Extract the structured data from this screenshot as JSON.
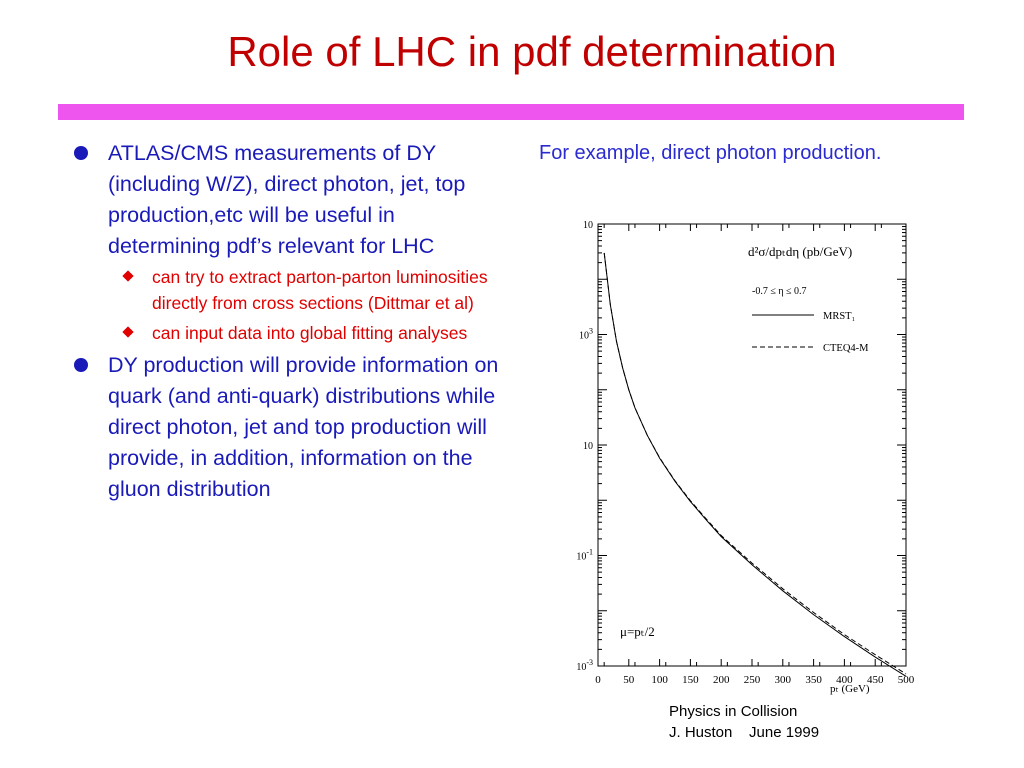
{
  "slide": {
    "title": "Role of LHC in pdf determination",
    "title_color": "#c00000",
    "rule_color": "#ee55ee",
    "side_caption": "For example, direct photon production.",
    "footer_line1": "Physics in Collision",
    "footer_line2": "J. Huston    June 1999",
    "bullets": [
      {
        "text": "ATLAS/CMS measurements of DY (including W/Z), direct photon, jet, top production,etc will be useful in determining pdf’s relevant for LHC",
        "sub": [
          "can try to extract parton-parton luminosities directly from cross sections (Dittmar et al)",
          "can input data into global fitting analyses"
        ]
      },
      {
        "text": "DY production will provide information on quark (and anti-quark) distributions while direct photon, jet and top production will provide, in addition, information on the gluon distribution",
        "sub": []
      }
    ]
  },
  "chart_data": {
    "type": "line",
    "title": "d²σ/dpₜdη  (pb/GeV)",
    "annotation_eta": "-0.7 ≤ η  ≤ 0.7",
    "annotation_scale": "μ=pₜ/2",
    "xlabel": "pₜ (GeV)",
    "ylabel": "",
    "xlim": [
      0,
      500
    ],
    "ylim_log10": [
      -3,
      5
    ],
    "y_scale": "log",
    "x_ticks": [
      0,
      50,
      100,
      150,
      200,
      250,
      300,
      350,
      400,
      450,
      500
    ],
    "y_tick_labels": [
      {
        "exp": 5,
        "label": "10",
        "sup": ""
      },
      {
        "exp": 3,
        "label": "10",
        "sup": "3"
      },
      {
        "exp": 1,
        "label": "10",
        "sup": ""
      },
      {
        "exp": -1,
        "label": "10",
        "sup": "-1"
      },
      {
        "exp": -3,
        "label": "10",
        "sup": "-3"
      }
    ],
    "legend_position": "top-right",
    "series": [
      {
        "name": "MRST₁",
        "style": "solid",
        "x": [
          10,
          20,
          30,
          40,
          50,
          60,
          80,
          100,
          125,
          150,
          175,
          200,
          250,
          300,
          350,
          400,
          450,
          500
        ],
        "y": [
          30000,
          3500,
          750,
          250,
          100,
          47,
          15,
          5.8,
          2.2,
          0.95,
          0.45,
          0.22,
          0.068,
          0.023,
          0.0085,
          0.0034,
          0.00145,
          0.00065
        ]
      },
      {
        "name": "CTEQ4-M",
        "style": "dashed",
        "x": [
          10,
          20,
          30,
          40,
          50,
          60,
          80,
          100,
          125,
          150,
          175,
          200,
          250,
          300,
          350,
          400,
          450,
          500
        ],
        "y": [
          30000,
          3500,
          750,
          250,
          100,
          47,
          15,
          5.9,
          2.25,
          0.98,
          0.47,
          0.23,
          0.073,
          0.025,
          0.0093,
          0.0037,
          0.0016,
          0.00072
        ]
      }
    ]
  }
}
